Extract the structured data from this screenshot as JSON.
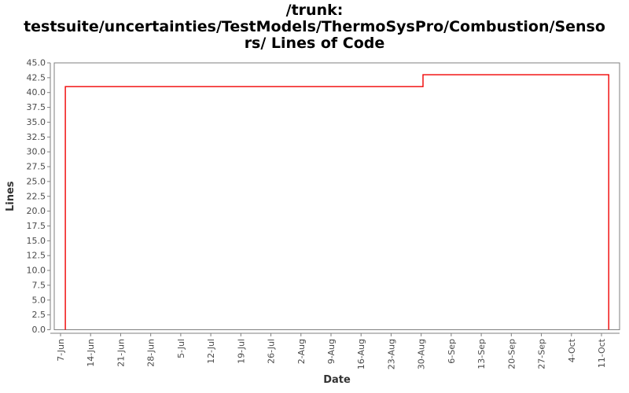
{
  "header": {
    "title_lines": [
      "/trunk:",
      "testsuite/uncertainties/TestModels/ThermoSysPro/Combustion/Senso",
      "rs/ Lines of Code"
    ]
  },
  "chart_data": {
    "type": "line",
    "subtype": "step",
    "title": "/trunk: testsuite/uncertainties/TestModels/ThermoSysPro/Combustion/Sensors/ Lines of Code",
    "xlabel": "Date",
    "ylabel": "Lines",
    "x_tick_labels": [
      "7-Jun",
      "14-Jun",
      "21-Jun",
      "28-Jun",
      "5-Jul",
      "12-Jul",
      "19-Jul",
      "26-Jul",
      "2-Aug",
      "9-Aug",
      "16-Aug",
      "23-Aug",
      "30-Aug",
      "6-Sep",
      "13-Sep",
      "20-Sep",
      "27-Sep",
      "4-Oct",
      "11-Oct"
    ],
    "ylim": [
      0,
      45
    ],
    "y_tick_step": 2.5,
    "y_tick_label_format_decimals": 1,
    "grid": false,
    "legend": "none",
    "background": "#ffffff",
    "axis_color": "#7f7f7f",
    "tick_label_color": "#4a4a4a",
    "axis_label_color": "#333333",
    "series": [
      {
        "name": "Lines of Code",
        "color": "#f00000",
        "x_unit": "weeks since 7-Jun tick",
        "points": [
          {
            "x": 0.16,
            "y": 0
          },
          {
            "x": 0.16,
            "y": 41
          },
          {
            "x": 12.06,
            "y": 41
          },
          {
            "x": 12.06,
            "y": 43
          },
          {
            "x": 18.24,
            "y": 43
          },
          {
            "x": 18.24,
            "y": 0
          }
        ]
      }
    ]
  }
}
